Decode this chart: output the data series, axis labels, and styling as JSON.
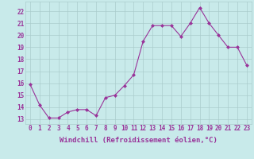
{
  "x": [
    0,
    1,
    2,
    3,
    4,
    5,
    6,
    7,
    8,
    9,
    10,
    11,
    12,
    13,
    14,
    15,
    16,
    17,
    18,
    19,
    20,
    21,
    22,
    23
  ],
  "y": [
    15.9,
    14.2,
    13.1,
    13.1,
    13.6,
    13.8,
    13.8,
    13.3,
    14.8,
    15.0,
    15.8,
    16.7,
    19.5,
    20.8,
    20.8,
    20.8,
    19.9,
    21.0,
    22.3,
    21.0,
    20.0,
    19.0,
    19.0,
    17.5
  ],
  "line_color": "#993399",
  "marker": "D",
  "markersize": 2,
  "linewidth": 0.8,
  "bg_color": "#c8eaea",
  "grid_color": "#aacccc",
  "xlabel": "Windchill (Refroidissement éolien,°C)",
  "xlabel_fontsize": 6.5,
  "tick_fontsize": 5.5,
  "yticks": [
    13,
    14,
    15,
    16,
    17,
    18,
    19,
    20,
    21,
    22
  ],
  "xticks": [
    0,
    1,
    2,
    3,
    4,
    5,
    6,
    7,
    8,
    9,
    10,
    11,
    12,
    13,
    14,
    15,
    16,
    17,
    18,
    19,
    20,
    21,
    22,
    23
  ],
  "ylim": [
    12.6,
    22.8
  ],
  "xlim": [
    -0.5,
    23.5
  ]
}
